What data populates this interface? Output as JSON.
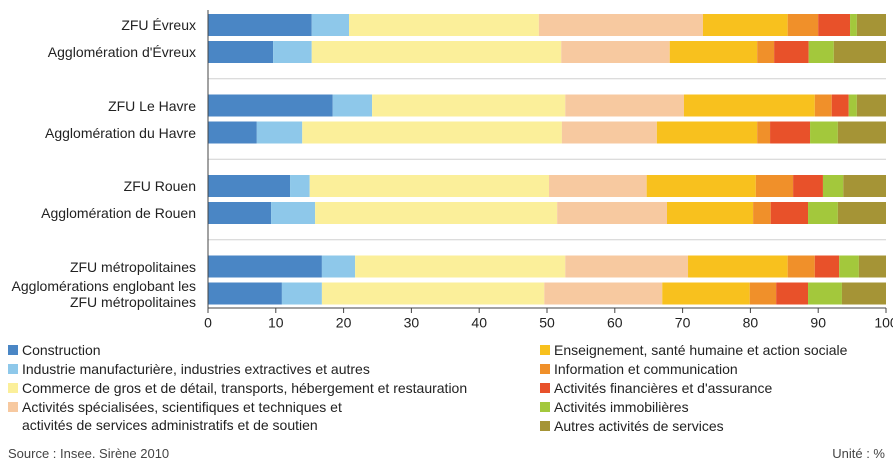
{
  "chart_data": {
    "type": "stacked_bar_horizontal",
    "categories": [
      "ZFU Évreux",
      "Agglomération d'Évreux",
      "ZFU Le Havre",
      "Agglomération du Havre",
      "ZFU Rouen",
      "Agglomération de Rouen",
      "ZFU métropolitaines",
      "Agglomérations englobant les ZFU métropolitaines"
    ],
    "series": [
      {
        "name": "Construction",
        "color": "#4a86c5",
        "values": [
          15.3,
          9.6,
          18.4,
          7.2,
          12.1,
          9.3,
          16.8,
          10.9
        ]
      },
      {
        "name": "Industrie manufacturière, industries extractives et autres",
        "color": "#8ec8ea",
        "values": [
          5.5,
          5.7,
          5.8,
          6.7,
          2.9,
          6.5,
          4.9,
          5.9
        ]
      },
      {
        "name": "Commerce de gros et de détail, transports, hébergement et restauration",
        "color": "#fbef9a",
        "values": [
          28.0,
          36.8,
          28.5,
          38.3,
          35.3,
          35.7,
          31.0,
          32.8
        ]
      },
      {
        "name": "Activités spécialisées, scientifiques et techniques et activités de services administratifs et de soutien",
        "color": "#f7c9a0",
        "values": [
          24.2,
          16.0,
          17.5,
          14.0,
          14.4,
          16.2,
          18.1,
          17.4
        ]
      },
      {
        "name": "Enseignement, santé humaine et action sociale",
        "color": "#f8c11e",
        "values": [
          12.5,
          12.9,
          19.3,
          14.8,
          16.1,
          12.7,
          14.7,
          12.9
        ]
      },
      {
        "name": "Information et communication",
        "color": "#f0902a",
        "values": [
          4.5,
          2.5,
          2.5,
          1.9,
          5.5,
          2.6,
          4.0,
          3.9
        ]
      },
      {
        "name": "Activités financières et d'assurance",
        "color": "#e8512a",
        "values": [
          4.7,
          5.1,
          2.5,
          5.9,
          4.4,
          5.5,
          3.6,
          4.7
        ]
      },
      {
        "name": "Activités immobilières",
        "color": "#a3c83c",
        "values": [
          1.0,
          3.7,
          1.2,
          4.1,
          3.0,
          4.4,
          2.9,
          5.0
        ]
      },
      {
        "name": "Autres activités de services",
        "color": "#a59436",
        "values": [
          4.3,
          7.7,
          4.3,
          7.1,
          6.3,
          7.1,
          4.0,
          6.5
        ]
      }
    ],
    "xlim": [
      0,
      100
    ],
    "xticks": [
      0,
      10,
      20,
      30,
      40,
      50,
      60,
      70,
      80,
      90,
      100
    ],
    "source": "Source : Insee. Sirène 2010",
    "unit": "Unité : %"
  }
}
